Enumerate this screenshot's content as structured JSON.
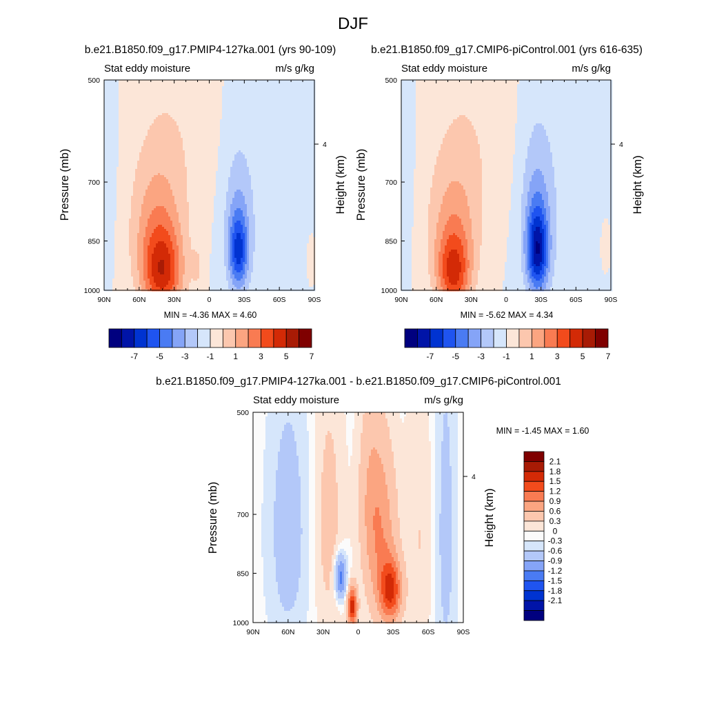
{
  "figure": {
    "title": "DJF",
    "colors": {
      "level_fills": [
        "#00007f",
        "#0014a8",
        "#0033d1",
        "#1f54f0",
        "#4a7bf3",
        "#85a4f7",
        "#b3c8f9",
        "#d6e6fb",
        "#fce6d8",
        "#fcc7ae",
        "#fba581",
        "#f97b52",
        "#f24b1c",
        "#d32a06",
        "#a81b05",
        "#7f0000"
      ],
      "diff_fills": [
        "#00007f",
        "#0014a8",
        "#0033d1",
        "#1f54f0",
        "#4a7bf3",
        "#85a4f7",
        "#b3c8f9",
        "#d6e6fb",
        "#fbfbfb",
        "#fce6d8",
        "#fcc7ae",
        "#fba581",
        "#f97b52",
        "#f24b1c",
        "#d32a06",
        "#a81b05",
        "#7f0000"
      ]
    }
  },
  "chart_data": [
    {
      "type": "heatmap",
      "id": "case",
      "title": "b.e21.B1850.f09_g17.PMIP4-127ka.001 (yrs 90-109)",
      "left_label": "Stat eddy moisture",
      "right_label": "m/s g/kg",
      "ylabel": "Pressure (mb)",
      "ylabel_right": "Height (km)",
      "x_ticks": [
        "90N",
        "60N",
        "30N",
        "0",
        "30S",
        "60S",
        "90S"
      ],
      "y_ticks": [
        500,
        700,
        850,
        1000
      ],
      "y_right_ticks": [
        "4"
      ],
      "xlim": [
        90,
        -90
      ],
      "ylim": [
        1000,
        500
      ],
      "stats": "MIN =  -4.36  MAX =   4.60",
      "min": -4.36,
      "max": 4.6,
      "colorbar_orientation": "horizontal",
      "colorbar_labels": [
        "-7",
        "-5",
        "-3",
        "-1",
        "1",
        "3",
        "5",
        "7"
      ],
      "features": [
        {
          "lat": 40,
          "p": 950,
          "wlat": 17,
          "wp": 130,
          "amp": 4.6
        },
        {
          "lat": 45,
          "p": 820,
          "wlat": 22,
          "wp": 180,
          "amp": 2.4
        },
        {
          "lat": 30,
          "p": 600,
          "wlat": 38,
          "wp": 220,
          "amp": 0.8
        },
        {
          "lat": 10,
          "p": 930,
          "wlat": 5,
          "wp": 70,
          "amp": 0.9
        },
        {
          "lat": -25,
          "p": 880,
          "wlat": 8,
          "wp": 110,
          "amp": -4.4
        },
        {
          "lat": -24,
          "p": 780,
          "wlat": 13,
          "wp": 190,
          "amp": -1.4
        },
        {
          "lat": -55,
          "p": 720,
          "wlat": 38,
          "wp": 400,
          "amp": -0.6
        },
        {
          "lat": 85,
          "p": 640,
          "wlat": 8,
          "wp": 260,
          "amp": -0.5
        },
        {
          "lat": -87,
          "p": 900,
          "wlat": 5,
          "wp": 90,
          "amp": 0.5
        }
      ]
    },
    {
      "type": "heatmap",
      "id": "control",
      "title": "b.e21.B1850.f09_g17.CMIP6-piControl.001 (yrs 616-635)",
      "left_label": "Stat eddy moisture",
      "right_label": "m/s g/kg",
      "ylabel": "Pressure (mb)",
      "ylabel_right": "Height (km)",
      "x_ticks": [
        "90N",
        "60N",
        "30N",
        "0",
        "30S",
        "60S",
        "90S"
      ],
      "y_ticks": [
        500,
        700,
        850,
        1000
      ],
      "y_right_ticks": [
        "4"
      ],
      "xlim": [
        90,
        -90
      ],
      "ylim": [
        1000,
        500
      ],
      "stats": "MIN =  -5.62  MAX =   4.34",
      "min": -5.62,
      "max": 4.34,
      "colorbar_orientation": "horizontal",
      "colorbar_labels": [
        "-7",
        "-5",
        "-3",
        "-1",
        "1",
        "3",
        "5",
        "7"
      ],
      "features": [
        {
          "lat": 45,
          "p": 950,
          "wlat": 14,
          "wp": 120,
          "amp": 4.3
        },
        {
          "lat": 45,
          "p": 820,
          "wlat": 22,
          "wp": 180,
          "amp": 2.2
        },
        {
          "lat": 30,
          "p": 600,
          "wlat": 38,
          "wp": 220,
          "amp": 0.8
        },
        {
          "lat": -27,
          "p": 880,
          "wlat": 9,
          "wp": 120,
          "amp": -5.6
        },
        {
          "lat": -26,
          "p": 760,
          "wlat": 14,
          "wp": 200,
          "amp": -1.8
        },
        {
          "lat": -55,
          "p": 720,
          "wlat": 38,
          "wp": 400,
          "amp": -0.6
        },
        {
          "lat": 85,
          "p": 640,
          "wlat": 8,
          "wp": 260,
          "amp": -0.5
        },
        {
          "lat": -85,
          "p": 860,
          "wlat": 5,
          "wp": 90,
          "amp": 0.6
        }
      ]
    },
    {
      "type": "heatmap",
      "id": "difference",
      "title": "b.e21.B1850.f09_g17.PMIP4-127ka.001 - b.e21.B1850.f09_g17.CMIP6-piControl.001",
      "left_label": "Stat eddy moisture",
      "right_label": "m/s g/kg",
      "ylabel": "Pressure (mb)",
      "ylabel_right": "Height (km)",
      "x_ticks": [
        "90N",
        "60N",
        "30N",
        "0",
        "30S",
        "60S",
        "90S"
      ],
      "y_ticks": [
        500,
        700,
        850,
        1000
      ],
      "y_right_ticks": [
        "4"
      ],
      "xlim": [
        90,
        -90
      ],
      "ylim": [
        1000,
        500
      ],
      "stats": "MIN =  -1.45  MAX =   1.60",
      "min": -1.45,
      "max": 1.6,
      "colorbar_orientation": "vertical",
      "colorbar_labels": [
        "2.1",
        "1.8",
        "1.5",
        "1.2",
        "0.9",
        "0.6",
        "0.3",
        "0",
        "-0.3",
        "-0.6",
        "-0.9",
        "-1.2",
        "-1.5",
        "-1.8",
        "-2.1"
      ],
      "features": [
        {
          "lat": 5,
          "p": 950,
          "wlat": 4,
          "wp": 60,
          "amp": 1.6
        },
        {
          "lat": 15,
          "p": 860,
          "wlat": 5,
          "wp": 60,
          "amp": -1.0
        },
        {
          "lat": -28,
          "p": 900,
          "wlat": 9,
          "wp": 90,
          "amp": 1.3
        },
        {
          "lat": -20,
          "p": 760,
          "wlat": 13,
          "wp": 220,
          "amp": 0.7
        },
        {
          "lat": -10,
          "p": 650,
          "wlat": 10,
          "wp": 200,
          "amp": 0.35
        },
        {
          "lat": 60,
          "p": 740,
          "wlat": 16,
          "wp": 300,
          "amp": -0.35
        },
        {
          "lat": 25,
          "p": 720,
          "wlat": 12,
          "wp": 300,
          "amp": 0.3
        },
        {
          "lat": -75,
          "p": 750,
          "wlat": 8,
          "wp": 400,
          "amp": -0.3
        },
        {
          "lat": -52,
          "p": 760,
          "wlat": 10,
          "wp": 400,
          "amp": 0.2
        }
      ]
    }
  ]
}
